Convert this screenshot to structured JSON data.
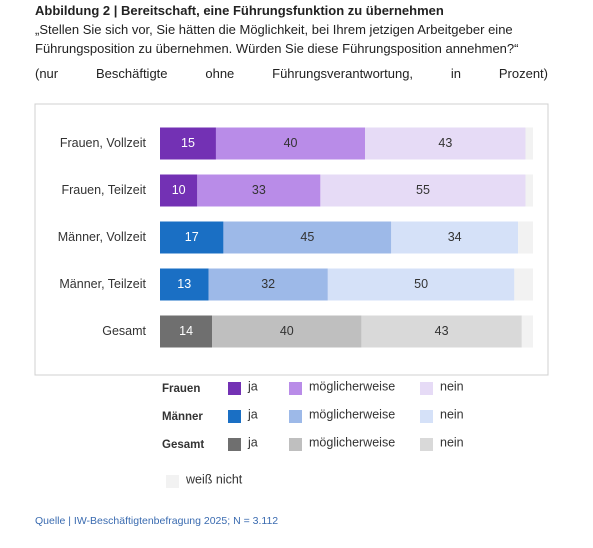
{
  "header": {
    "title": "Abbildung 2 | Bereitschaft, eine Führungsfunktion zu übernehmen",
    "question": "„Stellen Sie sich vor, Sie hätten die Möglichkeit, bei Ihrem jetzigen Arbeitgeber eine Führungsposition zu übernehmen. Würden Sie diese Führungsposition annehmen?“",
    "note": "(nur Beschäftigte ohne Führungsverantwortung, in Prozent)"
  },
  "chart_data": {
    "type": "stacked-bar",
    "orientation": "horizontal",
    "categories": [
      "Frauen, Vollzeit",
      "Frauen, Teilzeit",
      "Männer, Vollzeit",
      "Männer, Teilzeit",
      "Gesamt"
    ],
    "xlim": [
      0,
      100
    ],
    "series": [
      {
        "name": "ja",
        "values": [
          15,
          10,
          17,
          13,
          14
        ],
        "colors": [
          "#7331b4",
          "#7331b4",
          "#1a6fc4",
          "#1a6fc4",
          "#6f6f6f"
        ],
        "label_color": "#ffffff"
      },
      {
        "name": "möglicherweise",
        "values": [
          40,
          33,
          45,
          32,
          40
        ],
        "colors": [
          "#b98ce8",
          "#b98ce8",
          "#9db9e8",
          "#9db9e8",
          "#bfbfbf"
        ],
        "label_color": "#333333"
      },
      {
        "name": "nein",
        "values": [
          43,
          55,
          34,
          50,
          43
        ],
        "colors": [
          "#e6dbf6",
          "#e6dbf6",
          "#d5e1f8",
          "#d5e1f8",
          "#d9d9d9"
        ],
        "label_color": "#333333"
      },
      {
        "name": "weiß nicht",
        "values": [
          2,
          2,
          4,
          5,
          3
        ],
        "colors": [
          "#f2f2f2",
          "#f2f2f2",
          "#f2f2f2",
          "#f2f2f2",
          "#f2f2f2"
        ]
      }
    ],
    "legend_groups": [
      {
        "name": "Frauen",
        "colors": [
          "#7331b4",
          "#b98ce8",
          "#e6dbf6"
        ]
      },
      {
        "name": "Männer",
        "colors": [
          "#1a6fc4",
          "#9db9e8",
          "#d5e1f8"
        ]
      },
      {
        "name": "Gesamt",
        "colors": [
          "#6f6f6f",
          "#bfbfbf",
          "#d9d9d9"
        ]
      }
    ]
  },
  "footer": {
    "source": "Quelle | IW-Beschäftigtenbefragung 2025; N = 3.112"
  }
}
